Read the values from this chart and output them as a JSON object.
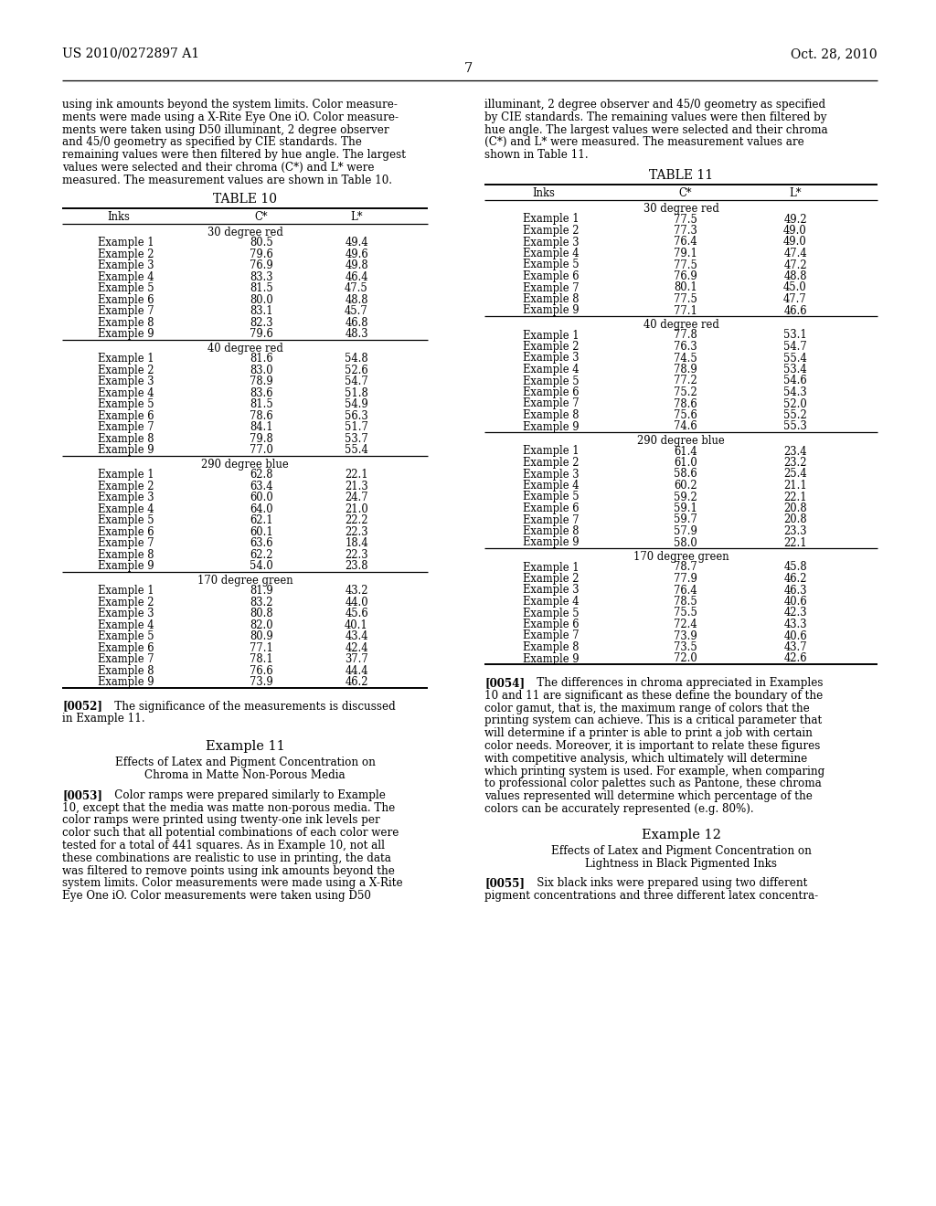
{
  "header_left": "US 2010/0272897 A1",
  "header_right": "Oct. 28, 2010",
  "page_number": "7",
  "left_col_text": [
    "using ink amounts beyond the system limits. Color measure-",
    "ments were made using a X-Rite Eye One iO. Color measure-",
    "ments were taken using D50 illuminant, 2 degree observer",
    "and 45/0 geometry as specified by CIE standards. The",
    "remaining values were then filtered by hue angle. The largest",
    "values were selected and their chroma (C*) and L* were",
    "measured. The measurement values are shown in Table 10."
  ],
  "right_col_text": [
    "illuminant, 2 degree observer and 45/0 geometry as specified",
    "by CIE standards. The remaining values were then filtered by",
    "hue angle. The largest values were selected and their chroma",
    "(C*) and L* were measured. The measurement values are",
    "shown in Table 11."
  ],
  "table10_title": "TABLE 10",
  "table10_sections": [
    {
      "section_title": "30 degree red",
      "rows": [
        [
          "Example 1",
          "80.5",
          "49.4"
        ],
        [
          "Example 2",
          "79.6",
          "49.6"
        ],
        [
          "Example 3",
          "76.9",
          "49.8"
        ],
        [
          "Example 4",
          "83.3",
          "46.4"
        ],
        [
          "Example 5",
          "81.5",
          "47.5"
        ],
        [
          "Example 6",
          "80.0",
          "48.8"
        ],
        [
          "Example 7",
          "83.1",
          "45.7"
        ],
        [
          "Example 8",
          "82.3",
          "46.8"
        ],
        [
          "Example 9",
          "79.6",
          "48.3"
        ]
      ]
    },
    {
      "section_title": "40 degree red",
      "rows": [
        [
          "Example 1",
          "81.6",
          "54.8"
        ],
        [
          "Example 2",
          "83.0",
          "52.6"
        ],
        [
          "Example 3",
          "78.9",
          "54.7"
        ],
        [
          "Example 4",
          "83.6",
          "51.8"
        ],
        [
          "Example 5",
          "81.5",
          "54.9"
        ],
        [
          "Example 6",
          "78.6",
          "56.3"
        ],
        [
          "Example 7",
          "84.1",
          "51.7"
        ],
        [
          "Example 8",
          "79.8",
          "53.7"
        ],
        [
          "Example 9",
          "77.0",
          "55.4"
        ]
      ]
    },
    {
      "section_title": "290 degree blue",
      "rows": [
        [
          "Example 1",
          "62.8",
          "22.1"
        ],
        [
          "Example 2",
          "63.4",
          "21.3"
        ],
        [
          "Example 3",
          "60.0",
          "24.7"
        ],
        [
          "Example 4",
          "64.0",
          "21.0"
        ],
        [
          "Example 5",
          "62.1",
          "22.2"
        ],
        [
          "Example 6",
          "60.1",
          "22.3"
        ],
        [
          "Example 7",
          "63.6",
          "18.4"
        ],
        [
          "Example 8",
          "62.2",
          "22.3"
        ],
        [
          "Example 9",
          "54.0",
          "23.8"
        ]
      ]
    },
    {
      "section_title": "170 degree green",
      "rows": [
        [
          "Example 1",
          "81.9",
          "43.2"
        ],
        [
          "Example 2",
          "83.2",
          "44.0"
        ],
        [
          "Example 3",
          "80.8",
          "45.6"
        ],
        [
          "Example 4",
          "82.0",
          "40.1"
        ],
        [
          "Example 5",
          "80.9",
          "43.4"
        ],
        [
          "Example 6",
          "77.1",
          "42.4"
        ],
        [
          "Example 7",
          "78.1",
          "37.7"
        ],
        [
          "Example 8",
          "76.6",
          "44.4"
        ],
        [
          "Example 9",
          "73.9",
          "46.2"
        ]
      ]
    }
  ],
  "table11_title": "TABLE 11",
  "table11_sections": [
    {
      "section_title": "30 degree red",
      "rows": [
        [
          "Example 1",
          "77.5",
          "49.2"
        ],
        [
          "Example 2",
          "77.3",
          "49.0"
        ],
        [
          "Example 3",
          "76.4",
          "49.0"
        ],
        [
          "Example 4",
          "79.1",
          "47.4"
        ],
        [
          "Example 5",
          "77.5",
          "47.2"
        ],
        [
          "Example 6",
          "76.9",
          "48.8"
        ],
        [
          "Example 7",
          "80.1",
          "45.0"
        ],
        [
          "Example 8",
          "77.5",
          "47.7"
        ],
        [
          "Example 9",
          "77.1",
          "46.6"
        ]
      ]
    },
    {
      "section_title": "40 degree red",
      "rows": [
        [
          "Example 1",
          "77.8",
          "53.1"
        ],
        [
          "Example 2",
          "76.3",
          "54.7"
        ],
        [
          "Example 3",
          "74.5",
          "55.4"
        ],
        [
          "Example 4",
          "78.9",
          "53.4"
        ],
        [
          "Example 5",
          "77.2",
          "54.6"
        ],
        [
          "Example 6",
          "75.2",
          "54.3"
        ],
        [
          "Example 7",
          "78.6",
          "52.0"
        ],
        [
          "Example 8",
          "75.6",
          "55.2"
        ],
        [
          "Example 9",
          "74.6",
          "55.3"
        ]
      ]
    },
    {
      "section_title": "290 degree blue",
      "rows": [
        [
          "Example 1",
          "61.4",
          "23.4"
        ],
        [
          "Example 2",
          "61.0",
          "23.2"
        ],
        [
          "Example 3",
          "58.6",
          "25.4"
        ],
        [
          "Example 4",
          "60.2",
          "21.1"
        ],
        [
          "Example 5",
          "59.2",
          "22.1"
        ],
        [
          "Example 6",
          "59.1",
          "20.8"
        ],
        [
          "Example 7",
          "59.7",
          "20.8"
        ],
        [
          "Example 8",
          "57.9",
          "23.3"
        ],
        [
          "Example 9",
          "58.0",
          "22.1"
        ]
      ]
    },
    {
      "section_title": "170 degree green",
      "rows": [
        [
          "Example 1",
          "78.7",
          "45.8"
        ],
        [
          "Example 2",
          "77.9",
          "46.2"
        ],
        [
          "Example 3",
          "76.4",
          "46.3"
        ],
        [
          "Example 4",
          "78.5",
          "40.6"
        ],
        [
          "Example 5",
          "75.5",
          "42.3"
        ],
        [
          "Example 6",
          "72.4",
          "43.3"
        ],
        [
          "Example 7",
          "73.9",
          "40.6"
        ],
        [
          "Example 8",
          "73.5",
          "43.7"
        ],
        [
          "Example 9",
          "72.0",
          "42.6"
        ]
      ]
    }
  ],
  "para0052_lines": [
    "[0052]    The significance of the measurements is discussed",
    "in Example 11."
  ],
  "example11_title": "Example 11",
  "example11_sub1": "Effects of Latex and Pigment Concentration on",
  "example11_sub2": "Chroma in Matte Non-Porous Media",
  "para0053_lines": [
    "[0053]    Color ramps were prepared similarly to Example",
    "10, except that the media was matte non-porous media. The",
    "color ramps were printed using twenty-one ink levels per",
    "color such that all potential combinations of each color were",
    "tested for a total of 441 squares. As in Example 10, not all",
    "these combinations are realistic to use in printing, the data",
    "was filtered to remove points using ink amounts beyond the",
    "system limits. Color measurements were made using a X-Rite",
    "Eye One iO. Color measurements were taken using D50"
  ],
  "para0054_lines": [
    "[0054]    The differences in chroma appreciated in Examples",
    "10 and 11 are significant as these define the boundary of the",
    "color gamut, that is, the maximum range of colors that the",
    "printing system can achieve. This is a critical parameter that",
    "will determine if a printer is able to print a job with certain",
    "color needs. Moreover, it is important to relate these figures",
    "with competitive analysis, which ultimately will determine",
    "which printing system is used. For example, when comparing",
    "to professional color palettes such as Pantone, these chroma",
    "values represented will determine which percentage of the",
    "colors can be accurately represented (e.g. 80%)."
  ],
  "example12_title": "Example 12",
  "example12_sub1": "Effects of Latex and Pigment Concentration on",
  "example12_sub2": "Lightness in Black Pigmented Inks",
  "para0055_lines": [
    "[0055]    Six black inks were prepared using two different",
    "pigment concentrations and three different latex concentra-"
  ]
}
